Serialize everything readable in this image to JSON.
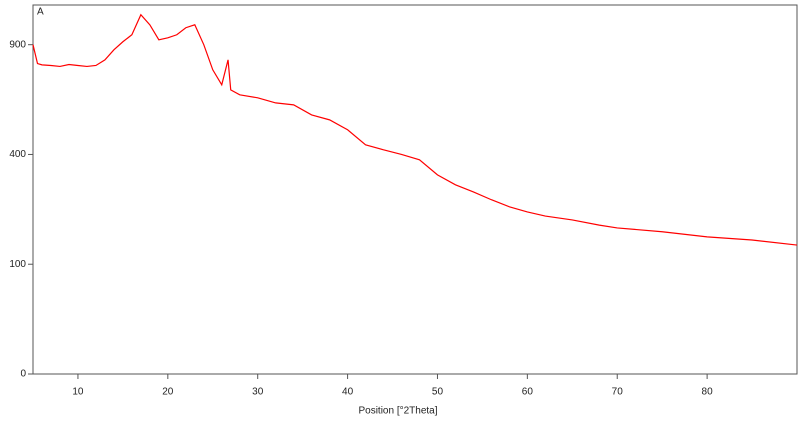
{
  "chart_data": {
    "type": "line",
    "panel_label": "A",
    "x_label": "Position [°2Theta]",
    "y_scale": "sqrt",
    "xlim": [
      5,
      90
    ],
    "xticks": [
      10,
      20,
      30,
      40,
      50,
      60,
      70,
      80
    ],
    "ylim": [
      0,
      1130
    ],
    "yticks": [
      0,
      100,
      400,
      900
    ],
    "series": [
      {
        "color": "#ff0000",
        "x": [
          5,
          5.5,
          6,
          7,
          8,
          9,
          10,
          11,
          12,
          13,
          14,
          15,
          16,
          17,
          18,
          19,
          20,
          21,
          22,
          23,
          24,
          25,
          26,
          26.7,
          27,
          28,
          30,
          32,
          34,
          36,
          38,
          40,
          42,
          44,
          46,
          48,
          50,
          52,
          54,
          56,
          58,
          60,
          62,
          65,
          68,
          70,
          75,
          80,
          85,
          90
        ],
        "values": [
          900,
          800,
          793,
          790,
          785,
          795,
          790,
          785,
          790,
          819,
          872,
          916,
          955,
          1071,
          1012,
          927,
          938,
          955,
          995,
          1012,
          900,
          768,
          694,
          819,
          670,
          647,
          633,
          610,
          601,
          557,
          536,
          495,
          436,
          417,
          400,
          381,
          329,
          297,
          275,
          252,
          232,
          218,
          207,
          197,
          184,
          177,
          168,
          156,
          149,
          138
        ]
      }
    ]
  }
}
